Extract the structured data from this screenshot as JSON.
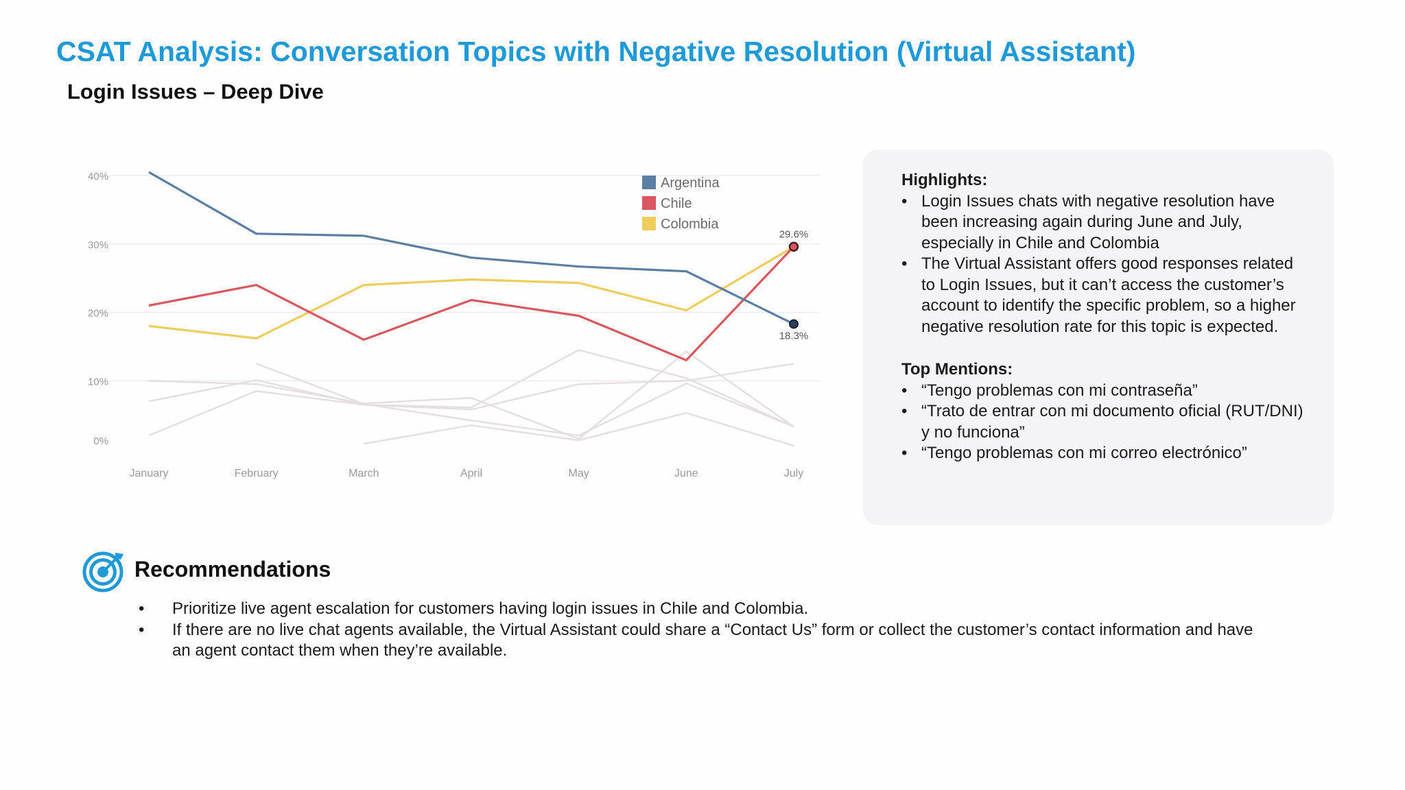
{
  "page": {
    "title": "CSAT Analysis: Conversation Topics with Negative Resolution (Virtual Assistant)",
    "subtitle": "Login Issues – Deep Dive"
  },
  "colors": {
    "title": "#1f9ad6",
    "argentina": "#5b7fa3",
    "chile": "#d9585f",
    "colombia": "#edcd5c",
    "faded": "#e3dfe2",
    "panel_bg": "#f4f4f6",
    "icon": "#1f9ad6"
  },
  "chart_data": {
    "type": "line",
    "title": "",
    "xlabel": "",
    "ylabel": "",
    "categories": [
      "January",
      "February",
      "March",
      "April",
      "May",
      "June",
      "July"
    ],
    "y_ticks": [
      "0%",
      "10%",
      "20%",
      "30%",
      "40%"
    ],
    "ylim": [
      0,
      40
    ],
    "grid": true,
    "legend_position": "top-right",
    "series": [
      {
        "name": "Argentina",
        "values": [
          40.5,
          31.5,
          31.2,
          28,
          26.7,
          26,
          18.3
        ]
      },
      {
        "name": "Chile",
        "values": [
          21,
          24,
          16,
          21.8,
          19.5,
          13,
          29.6
        ]
      },
      {
        "name": "Colombia",
        "values": [
          18,
          16.2,
          24,
          24.8,
          24.3,
          20.3,
          29.6
        ]
      }
    ],
    "background_series": [
      {
        "values": [
          10,
          9.5,
          6.7,
          7.5,
          1.5,
          14.3,
          3.3
        ]
      },
      {
        "values": [
          7,
          10.1,
          6.5,
          5.8,
          9.5,
          10,
          12.5
        ]
      },
      {
        "values": [
          2,
          8.5,
          6.5,
          6.1,
          14.5,
          10.4,
          3.3
        ]
      },
      {
        "values": [
          null,
          12.5,
          6.6,
          4.2,
          2,
          9.6,
          3.3
        ]
      },
      {
        "values": [
          null,
          null,
          0.8,
          3.5,
          1.3,
          5.3,
          0.5
        ]
      }
    ],
    "annotations": [
      {
        "text": "29.6%",
        "category": "July",
        "value": 29.6
      },
      {
        "text": "18.3%",
        "category": "July",
        "value": 18.3
      }
    ]
  },
  "highlights": {
    "heading": "Highlights:",
    "items": [
      "Login Issues chats with negative resolution have been increasing again during June and July, especially in Chile and Colombia",
      "The Virtual Assistant offers good responses related to Login Issues, but it can’t access the customer’s account to identify the specific problem, so a higher negative resolution rate for this topic is expected."
    ]
  },
  "mentions": {
    "heading": "Top Mentions:",
    "items": [
      "“Tengo problemas con mi contraseña”",
      "“Trato de entrar con mi documento oficial (RUT/DNI) y no funciona”",
      "“Tengo problemas con mi correo electrónico”"
    ]
  },
  "recommendations": {
    "icon": "target-icon",
    "title": "Recommendations",
    "items": [
      "Prioritize live agent escalation for customers having login issues in Chile and Colombia.",
      "If there are no live chat agents available, the Virtual Assistant could share a “Contact Us” form or collect the customer’s contact information and have an agent contact them when they’re available."
    ]
  }
}
